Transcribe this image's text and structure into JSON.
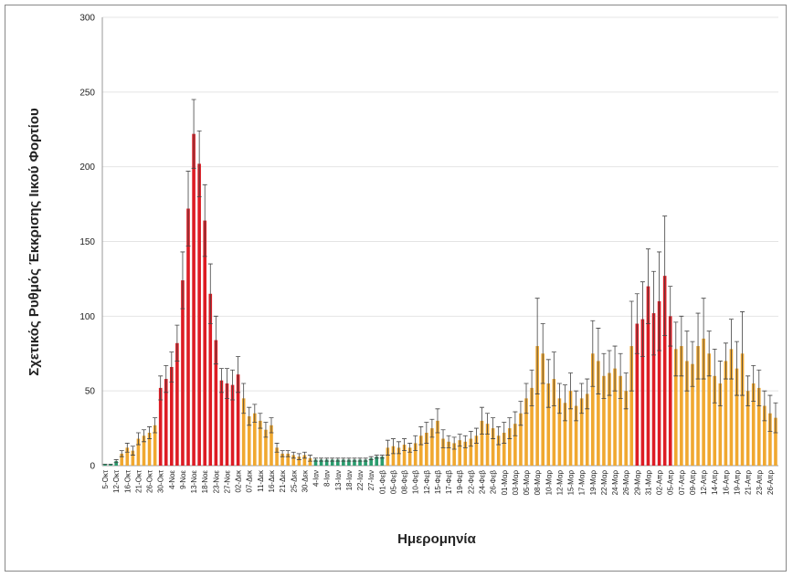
{
  "chart_data": {
    "type": "bar",
    "y_label": "Σχετικός Ρυθμός Έκκρισης Ιικού Φορτίου",
    "x_label": "Ημερομηνία",
    "categories": [
      "5-Οκτ",
      null,
      "12-Οκτ",
      null,
      "16-Οκτ",
      null,
      "21-Οκτ",
      null,
      "26-Οκτ",
      null,
      "30-Οκτ",
      null,
      "4-Νοε",
      null,
      "9-Νοε",
      null,
      "13-Νοε",
      null,
      "18-Νοε",
      null,
      "23-Νοε",
      null,
      "27-Νοε",
      null,
      "02-Δεκ",
      null,
      "07-Δεκ",
      null,
      "11-Δεκ",
      null,
      "16-Δεκ",
      null,
      "21-Δεκ",
      null,
      "25-Δεκ",
      null,
      "30-Δεκ",
      null,
      "4-Ιαν",
      null,
      "8-Ιαν",
      null,
      "13-Ιαν",
      null,
      "18-Ιαν",
      null,
      "22-Ιαν",
      null,
      "27-Ιαν",
      null,
      "01-Φεβ",
      null,
      "05-Φεβ",
      null,
      "08-Φεβ",
      null,
      "10-Φεβ",
      null,
      "12-Φεβ",
      null,
      "15-Φεβ",
      null,
      "17-Φεβ",
      null,
      "19-Φεβ",
      null,
      "22-Φεβ",
      null,
      "24-Φεβ",
      null,
      "26-Φεβ",
      null,
      "01-Μαρ",
      null,
      "03-Μαρ",
      null,
      "05-Μαρ",
      null,
      "08-Μαρ",
      null,
      "10-Μαρ",
      null,
      "12-Μαρ",
      null,
      "15-Μαρ",
      null,
      "17-Μαρ",
      null,
      "19-Μαρ",
      null,
      "22-Μαρ",
      null,
      "24-Μαρ",
      null,
      "26-Μαρ",
      null,
      "29-Μαρ",
      null,
      "31-Μαρ",
      null,
      "02-Απρ",
      null,
      "05-Απρ",
      null,
      "07-Απρ",
      null,
      "09-Απρ",
      null,
      "12-Απρ",
      null,
      "14-Απρ",
      null,
      "16-Απρ",
      null,
      "19-Απρ",
      null,
      "21-Απρ",
      null,
      "23-Απρ",
      null,
      "26-Απρ",
      null
    ],
    "values": [
      1,
      1,
      3,
      8,
      12,
      10,
      18,
      20,
      22,
      27,
      52,
      58,
      66,
      82,
      124,
      172,
      222,
      202,
      164,
      115,
      84,
      57,
      55,
      54,
      61,
      45,
      33,
      35,
      30,
      24,
      27,
      12,
      8,
      8,
      7,
      6,
      7,
      5,
      4,
      4,
      4,
      4,
      4,
      4,
      4,
      4,
      4,
      4,
      5,
      6,
      6,
      12,
      13,
      12,
      14,
      12,
      15,
      20,
      22,
      25,
      30,
      18,
      16,
      15,
      17,
      16,
      18,
      20,
      30,
      28,
      25,
      20,
      22,
      25,
      28,
      35,
      45,
      52,
      80,
      75,
      55,
      58,
      45,
      42,
      50,
      40,
      45,
      48,
      75,
      70,
      60,
      62,
      65,
      60,
      50,
      80,
      95,
      98,
      120,
      102,
      110,
      127,
      100,
      78,
      80,
      70,
      68,
      80,
      85,
      75,
      60,
      55,
      70,
      78,
      65,
      75,
      50,
      55,
      52,
      40,
      35,
      32
    ],
    "errors": [
      0,
      0,
      1,
      2,
      3,
      3,
      4,
      4,
      4,
      5,
      8,
      9,
      10,
      12,
      19,
      25,
      23,
      22,
      24,
      20,
      16,
      8,
      10,
      10,
      12,
      10,
      6,
      6,
      5,
      5,
      5,
      3,
      2,
      2,
      2,
      2,
      2,
      2,
      1,
      1,
      1,
      1,
      1,
      1,
      1,
      1,
      1,
      1,
      1,
      1,
      1,
      5,
      5,
      4,
      4,
      3,
      5,
      6,
      7,
      6,
      8,
      6,
      4,
      4,
      4,
      4,
      5,
      5,
      9,
      7,
      7,
      6,
      7,
      7,
      8,
      8,
      10,
      12,
      32,
      20,
      16,
      18,
      10,
      12,
      12,
      10,
      10,
      10,
      22,
      22,
      15,
      15,
      15,
      15,
      12,
      30,
      20,
      25,
      25,
      28,
      33,
      40,
      20,
      18,
      20,
      20,
      15,
      22,
      27,
      15,
      18,
      15,
      12,
      20,
      18,
      28,
      10,
      12,
      12,
      10,
      12,
      10
    ],
    "colors": [
      "#2a9d6e",
      "#2a9d6e",
      "#2a9d6e",
      "#f0a830",
      "#f0a830",
      "#f0a830",
      "#f0a830",
      "#f0a830",
      "#f0a830",
      "#f0a830",
      "#dd1c24",
      "#dd1c24",
      "#dd1c24",
      "#dd1c24",
      "#dd1c24",
      "#dd1c24",
      "#dd1c24",
      "#dd1c24",
      "#dd1c24",
      "#dd1c24",
      "#dd1c24",
      "#dd1c24",
      "#dd1c24",
      "#dd1c24",
      "#dd1c24",
      "#f0a830",
      "#f0a830",
      "#f0a830",
      "#f0a830",
      "#f0a830",
      "#f0a830",
      "#f0a830",
      "#f0a830",
      "#f0a830",
      "#f0a830",
      "#f0a830",
      "#f0a830",
      "#f0a830",
      "#2a9d6e",
      "#2a9d6e",
      "#2a9d6e",
      "#2a9d6e",
      "#2a9d6e",
      "#2a9d6e",
      "#2a9d6e",
      "#2a9d6e",
      "#2a9d6e",
      "#2a9d6e",
      "#2a9d6e",
      "#2a9d6e",
      "#2a9d6e",
      "#f0a830",
      "#f0a830",
      "#f0a830",
      "#f0a830",
      "#f0a830",
      "#f0a830",
      "#f0a830",
      "#f0a830",
      "#f0a830",
      "#f0a830",
      "#f0a830",
      "#f0a830",
      "#f0a830",
      "#f0a830",
      "#f0a830",
      "#f0a830",
      "#f0a830",
      "#f0a830",
      "#f0a830",
      "#f0a830",
      "#f0a830",
      "#f0a830",
      "#f0a830",
      "#f0a830",
      "#f0a830",
      "#f0a830",
      "#f0a830",
      "#f0a830",
      "#f0a830",
      "#f0a830",
      "#f0a830",
      "#f0a830",
      "#f0a830",
      "#f0a830",
      "#f0a830",
      "#f0a830",
      "#f0a830",
      "#f0a830",
      "#f0a830",
      "#f0a830",
      "#f0a830",
      "#f0a830",
      "#f0a830",
      "#f0a830",
      "#f0a830",
      "#dd1c24",
      "#dd1c24",
      "#dd1c24",
      "#dd1c24",
      "#dd1c24",
      "#dd1c24",
      "#dd1c24",
      "#f0a830",
      "#f0a830",
      "#f0a830",
      "#f0a830",
      "#f0a830",
      "#f0a830",
      "#f0a830",
      "#f0a830",
      "#f0a830",
      "#f0a830",
      "#f0a830",
      "#f0a830",
      "#f0a830",
      "#f0a830",
      "#f0a830",
      "#f0a830",
      "#f0a830",
      "#f0a830",
      "#f0a830"
    ],
    "ylim": [
      0,
      300
    ],
    "yticks": [
      0,
      50,
      100,
      150,
      200,
      250,
      300
    ],
    "grid": true
  }
}
